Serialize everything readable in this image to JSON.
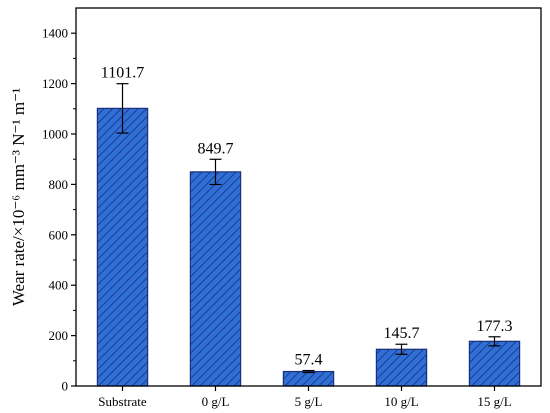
{
  "chart_data": {
    "type": "bar",
    "categories": [
      "Substrate",
      "0 g/L",
      "5 g/L",
      "10 g/L",
      "15 g/L"
    ],
    "values": [
      1101.7,
      849.7,
      57.4,
      145.7,
      177.3
    ],
    "errors": [
      98,
      50,
      4,
      20,
      18
    ],
    "value_labels": [
      "1101.7",
      "849.7",
      "57.4",
      "145.7",
      "177.3"
    ],
    "title": "",
    "xlabel": "",
    "ylabel": "Wear rate/×10⁻⁶ mm⁻³ N⁻¹ m⁻¹",
    "ylim": [
      0,
      1500
    ],
    "yticks": [
      0,
      200,
      400,
      600,
      800,
      1000,
      1200,
      1400
    ],
    "ytick_labels": [
      "0",
      "200",
      "400",
      "600",
      "800",
      "1000",
      "1200",
      "1400"
    ],
    "grid": false,
    "bar_color": "#2f6fd6",
    "bar_edge_color": "#1a2f7a",
    "hatch": "diagonal"
  }
}
